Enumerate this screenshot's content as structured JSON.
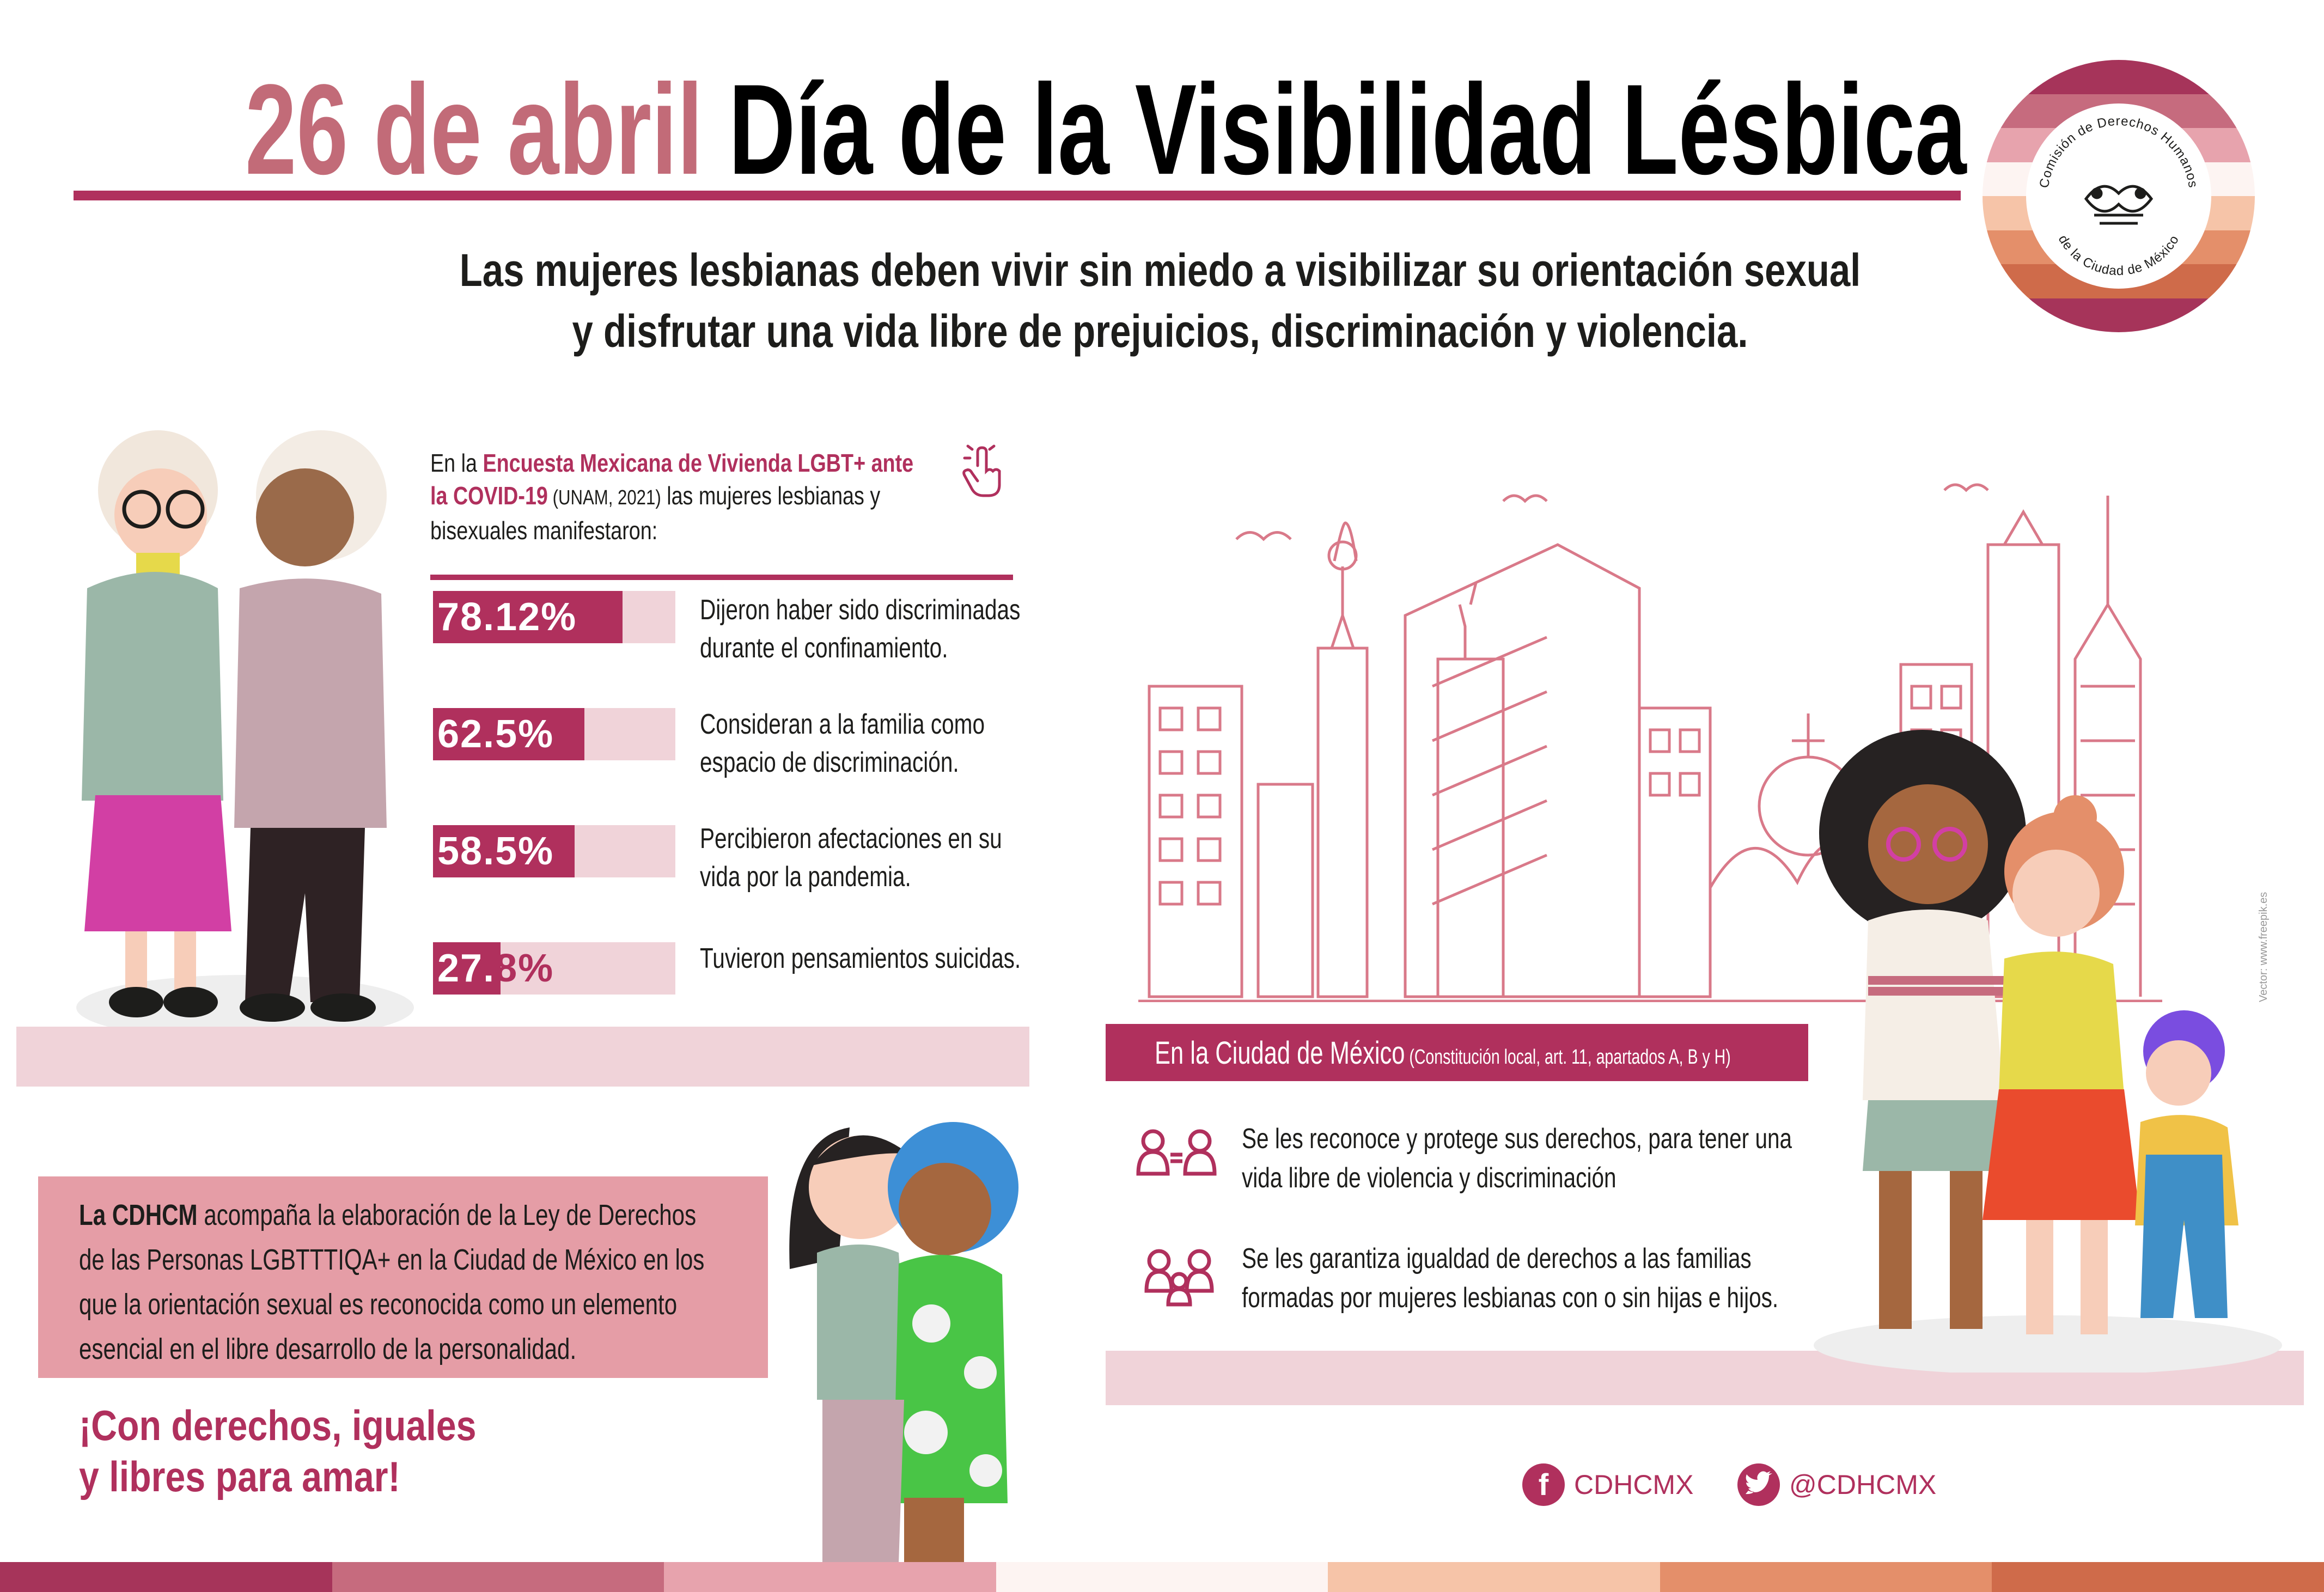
{
  "header": {
    "date": "26 de abril",
    "title": "Día de la Visibilidad Lésbica",
    "subtitle_line1": "Las mujeres lesbianas deben vivir sin miedo a visibilizar su orientación sexual",
    "subtitle_line2": "y disfrutar una vida libre de prejuicios, discriminación y violencia."
  },
  "logo": {
    "text_top": "Comisión de Derechos Humanos",
    "text_bottom": "de la Ciudad de México",
    "band_colors": [
      "#a6345a",
      "#c66b7e",
      "#e7a3ad",
      "#fdf4f2",
      "#f6c4a8",
      "#e48f6a",
      "#cf6b4a",
      "#a6345a"
    ]
  },
  "survey": {
    "intro_1": "En la ",
    "intro_link": "Encuesta Mexicana de Vivienda LGBT+ ante la COVID-19",
    "intro_2": " (UNAM, 2021)",
    "intro_3": " las mujeres lesbianas y bisexuales manifestaron:",
    "items": [
      {
        "value": "78.12%",
        "value_main": "78.12%",
        "value_tail": "",
        "fraction": 0.7812,
        "text": "Dijeron haber sido discriminadas durante el confinamiento."
      },
      {
        "value": "62.5%",
        "value_main": "62.5%",
        "value_tail": "",
        "fraction": 0.625,
        "text": "Consideran a la familia como espacio de discriminación."
      },
      {
        "value": "58.5%",
        "value_main": "58.5%",
        "value_tail": "",
        "fraction": 0.585,
        "text": "Percibieron afectaciones en su vida por la pandemia."
      },
      {
        "value": "27.8%",
        "value_main": "27.",
        "value_tail": "8%",
        "fraction": 0.278,
        "text": "Tuvieron pensamientos suicidas."
      }
    ]
  },
  "cdhcm": {
    "bold": "La CDHCM",
    "text": " acompaña la elaboración de la Ley de Derechos de las Personas LGBTTTIQA+ en la Ciudad de México en los que la orientación sexual es reconocida como un elemento esencial en el libre desarrollo de la personalidad.",
    "slogan_1": "¡Con derechos, iguales",
    "slogan_2": "y libres para amar!"
  },
  "cdmx": {
    "title": "En la Ciudad de México",
    "source": " (Constitución local, art. 11, apartados A, B y H)",
    "items": [
      {
        "icon": "equal-persons-icon",
        "text": "Se les reconoce y protege sus derechos, para tener una vida libre de violencia y discriminación"
      },
      {
        "icon": "family-icon",
        "text": "Se les garantiza igualdad de derechos a las familias formadas por mujeres lesbianas con o sin hijas e hijos."
      }
    ],
    "credit": "Vector: www.freepik.es"
  },
  "social": {
    "facebook": "CDHCMX",
    "twitter": "@CDHCMX"
  },
  "colors": {
    "accent": "#b0305d",
    "light_pink": "#f0d3d9",
    "mid_pink": "#e59da6",
    "title_rose": "#c26b78"
  },
  "bottom_stripe": [
    "#a6345a",
    "#c66b7e",
    "#e7a3ad",
    "#fdf4f2",
    "#f6c4a8",
    "#e48f6a",
    "#cf6b4a"
  ]
}
